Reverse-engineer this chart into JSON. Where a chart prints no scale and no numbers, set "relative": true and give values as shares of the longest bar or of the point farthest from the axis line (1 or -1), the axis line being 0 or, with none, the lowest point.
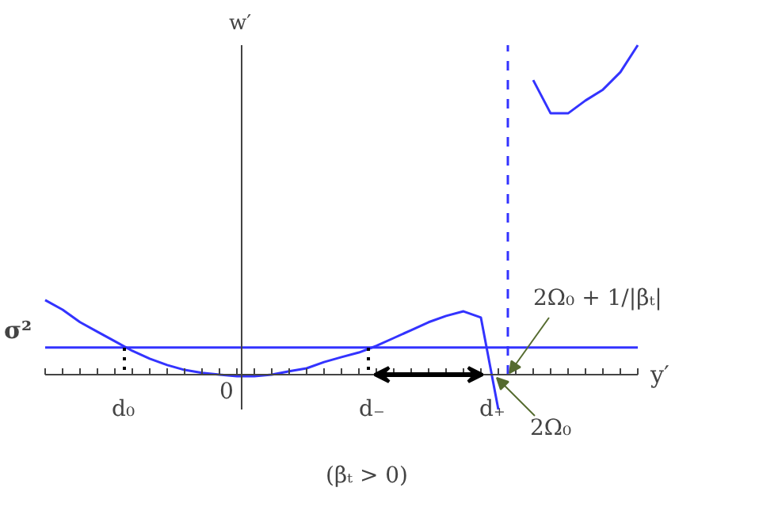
{
  "chart_data": {
    "type": "line",
    "relative": true,
    "xlabel": "y′",
    "ylabel": "w′",
    "categories": [
      null,
      null,
      null,
      null,
      null,
      null,
      null,
      null,
      null,
      null,
      null,
      null,
      null,
      null,
      null,
      null,
      null,
      null,
      null,
      null,
      null,
      null,
      null,
      null,
      null,
      null,
      null,
      null,
      null,
      null,
      null,
      null,
      null,
      null,
      null
    ],
    "series": [
      {
        "color": "#3333ff",
        "values": [
          0.226,
          0.197,
          0.159,
          0.13,
          0.101,
          0.072,
          0.048,
          0.029,
          0.014,
          0.005,
          0,
          -0.005,
          -0.005,
          0,
          0.01,
          0.019,
          0.038,
          0.053,
          0.067,
          0.087,
          0.111,
          0.135,
          0.159,
          0.178,
          0.192,
          0.173,
          -0.106,
          null,
          0.894,
          0.793,
          0.793,
          0.832,
          0.865,
          0.918,
          1.0
        ]
      }
    ],
    "ref_lines": [
      {
        "axis": "y",
        "value": 0.082,
        "label": "σ²",
        "color": "#3333ff",
        "line_style": "solid"
      }
    ],
    "annotations": [
      "d₀",
      "d₋",
      "d₊",
      "2Ω₀ + 1/|βₜ|",
      "2Ω₀",
      "0",
      "(βₜ > 0)"
    ]
  }
}
